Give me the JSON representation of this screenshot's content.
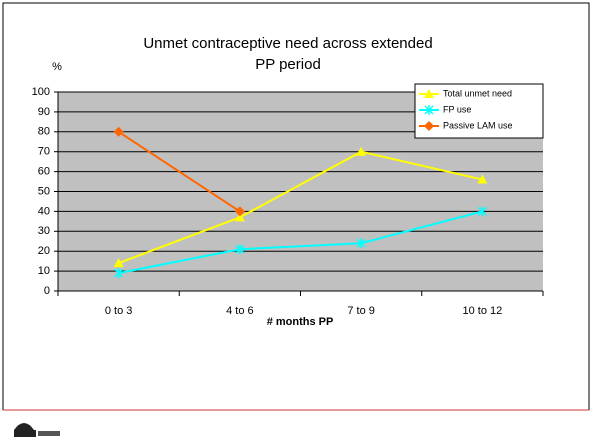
{
  "chart_data": {
    "type": "line",
    "title": [
      "Unmet contraceptive need across extended",
      "PP period"
    ],
    "y_label": "%",
    "x_label": "# months PP",
    "categories": [
      "0 to 3",
      "4 to 6",
      "7 to 9",
      "10 to 12"
    ],
    "series": [
      {
        "name": "Total unmet need",
        "color": "#ffff00",
        "marker": "triangle",
        "values": [
          14,
          37,
          70,
          56
        ]
      },
      {
        "name": "FP use",
        "color": "#00ffff",
        "marker": "x",
        "values": [
          9,
          21,
          24,
          40
        ]
      },
      {
        "name": "Passive LAM use",
        "color": "#ff6600",
        "marker": "diamond",
        "values": [
          80,
          40,
          null,
          null
        ]
      }
    ],
    "ylim": [
      0,
      100
    ],
    "yticks": [
      0,
      10,
      20,
      30,
      40,
      50,
      60,
      70,
      80,
      90,
      100
    ],
    "grid": true,
    "legend": "top-right"
  }
}
